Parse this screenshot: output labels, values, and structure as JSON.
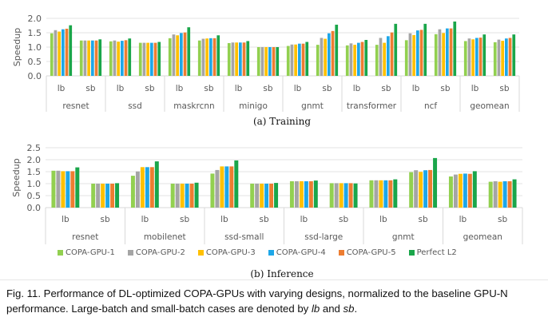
{
  "series_colors": {
    "COPA-GPU-1": "#92d050",
    "COPA-GPU-2": "#a5a5a5",
    "COPA-GPU-3": "#ffc000",
    "COPA-GPU-4": "#1ea7e8",
    "COPA-GPU-5": "#ed7d31",
    "Perfect L2": "#1aa64a"
  },
  "legend": {
    "items": [
      {
        "label": "COPA-GPU-1",
        "color": "#92d050"
      },
      {
        "label": "COPA-GPU-2",
        "color": "#a5a5a5"
      },
      {
        "label": "COPA-GPU-3",
        "color": "#ffc000"
      },
      {
        "label": "COPA-GPU-4",
        "color": "#1ea7e8"
      },
      {
        "label": "COPA-GPU-5",
        "color": "#ed7d31"
      },
      {
        "label": "Perfect L2",
        "color": "#1aa64a"
      }
    ]
  },
  "captions": {
    "a": "(a)  Training",
    "b": "(b)  Inference",
    "figure_prefix": "Fig. 11.  Performance of DL-optimized COPA-GPUs with varying designs, normalized to the baseline GPU-N performance. Large-batch and small-batch cases are denoted by ",
    "lb": "lb",
    "and": " and ",
    "sb": "sb",
    "end": "."
  },
  "chart_data": [
    {
      "type": "bar",
      "title": "(a) Training",
      "xlabel": "",
      "ylabel": "Speedup",
      "ylim": [
        0,
        2.0
      ],
      "yticks": [
        "0.0",
        "0.5",
        "1.0",
        "1.5",
        "2.0"
      ],
      "ytick_values": [
        0,
        0.5,
        1.0,
        1.5,
        2.0
      ],
      "grid": true,
      "legend": "bottom",
      "groups": [
        "resnet",
        "ssd",
        "maskrcnn",
        "minigo",
        "gnmt",
        "transformer",
        "ncf",
        "geomean"
      ],
      "subcategories": [
        "lb",
        "sb"
      ],
      "series": [
        {
          "name": "COPA-GPU-1",
          "values": [
            1.48,
            1.23,
            1.2,
            1.15,
            1.31,
            1.23,
            1.14,
            1.0,
            1.04,
            1.08,
            1.06,
            1.08,
            1.24,
            1.45,
            1.21,
            1.17
          ]
        },
        {
          "name": "COPA-GPU-2",
          "values": [
            1.59,
            1.23,
            1.23,
            1.15,
            1.44,
            1.29,
            1.16,
            1.0,
            1.09,
            1.32,
            1.13,
            1.32,
            1.48,
            1.62,
            1.3,
            1.26
          ]
        },
        {
          "name": "COPA-GPU-3",
          "values": [
            1.54,
            1.23,
            1.19,
            1.15,
            1.41,
            1.3,
            1.16,
            1.0,
            1.09,
            1.29,
            1.08,
            1.15,
            1.42,
            1.49,
            1.27,
            1.22
          ]
        },
        {
          "name": "COPA-GPU-4",
          "values": [
            1.62,
            1.23,
            1.22,
            1.15,
            1.49,
            1.31,
            1.16,
            1.0,
            1.12,
            1.48,
            1.15,
            1.38,
            1.58,
            1.65,
            1.32,
            1.3
          ]
        },
        {
          "name": "COPA-GPU-5",
          "values": [
            1.64,
            1.23,
            1.24,
            1.15,
            1.51,
            1.31,
            1.16,
            1.0,
            1.12,
            1.56,
            1.18,
            1.51,
            1.6,
            1.65,
            1.33,
            1.32
          ]
        },
        {
          "name": "Perfect L2",
          "values": [
            1.76,
            1.27,
            1.3,
            1.18,
            1.69,
            1.41,
            1.21,
            1.0,
            1.18,
            1.78,
            1.25,
            1.81,
            1.81,
            1.89,
            1.44,
            1.44
          ]
        }
      ]
    },
    {
      "type": "bar",
      "title": "(b) Inference",
      "xlabel": "",
      "ylabel": "Speedup",
      "ylim": [
        0,
        2.5
      ],
      "yticks": [
        "0.0",
        "0.5",
        "1.0",
        "1.5",
        "2.0",
        "2.5"
      ],
      "ytick_values": [
        0,
        0.5,
        1.0,
        1.5,
        2.0,
        2.5
      ],
      "grid": true,
      "legend": "bottom",
      "groups": [
        "resnet",
        "mobilenet",
        "ssd-small",
        "ssd-large",
        "gnmt",
        "geomean"
      ],
      "subcategories": [
        "lb",
        "sb"
      ],
      "series": [
        {
          "name": "COPA-GPU-1",
          "values": [
            1.54,
            1.0,
            1.33,
            1.0,
            1.42,
            1.0,
            1.1,
            1.02,
            1.14,
            1.48,
            1.3,
            1.08
          ]
        },
        {
          "name": "COPA-GPU-2",
          "values": [
            1.54,
            1.0,
            1.51,
            1.0,
            1.57,
            1.0,
            1.1,
            1.02,
            1.14,
            1.56,
            1.38,
            1.1
          ]
        },
        {
          "name": "COPA-GPU-3",
          "values": [
            1.52,
            1.0,
            1.69,
            1.0,
            1.72,
            1.0,
            1.1,
            1.02,
            1.14,
            1.49,
            1.41,
            1.08
          ]
        },
        {
          "name": "COPA-GPU-4",
          "values": [
            1.52,
            1.0,
            1.69,
            1.0,
            1.72,
            1.0,
            1.1,
            1.02,
            1.14,
            1.56,
            1.42,
            1.1
          ]
        },
        {
          "name": "COPA-GPU-5",
          "values": [
            1.52,
            1.0,
            1.69,
            1.0,
            1.72,
            1.0,
            1.1,
            1.02,
            1.14,
            1.57,
            1.41,
            1.1
          ]
        },
        {
          "name": "Perfect L2",
          "values": [
            1.68,
            1.02,
            1.93,
            1.04,
            1.97,
            1.03,
            1.13,
            1.01,
            1.18,
            2.07,
            1.52,
            1.18
          ]
        }
      ]
    }
  ]
}
